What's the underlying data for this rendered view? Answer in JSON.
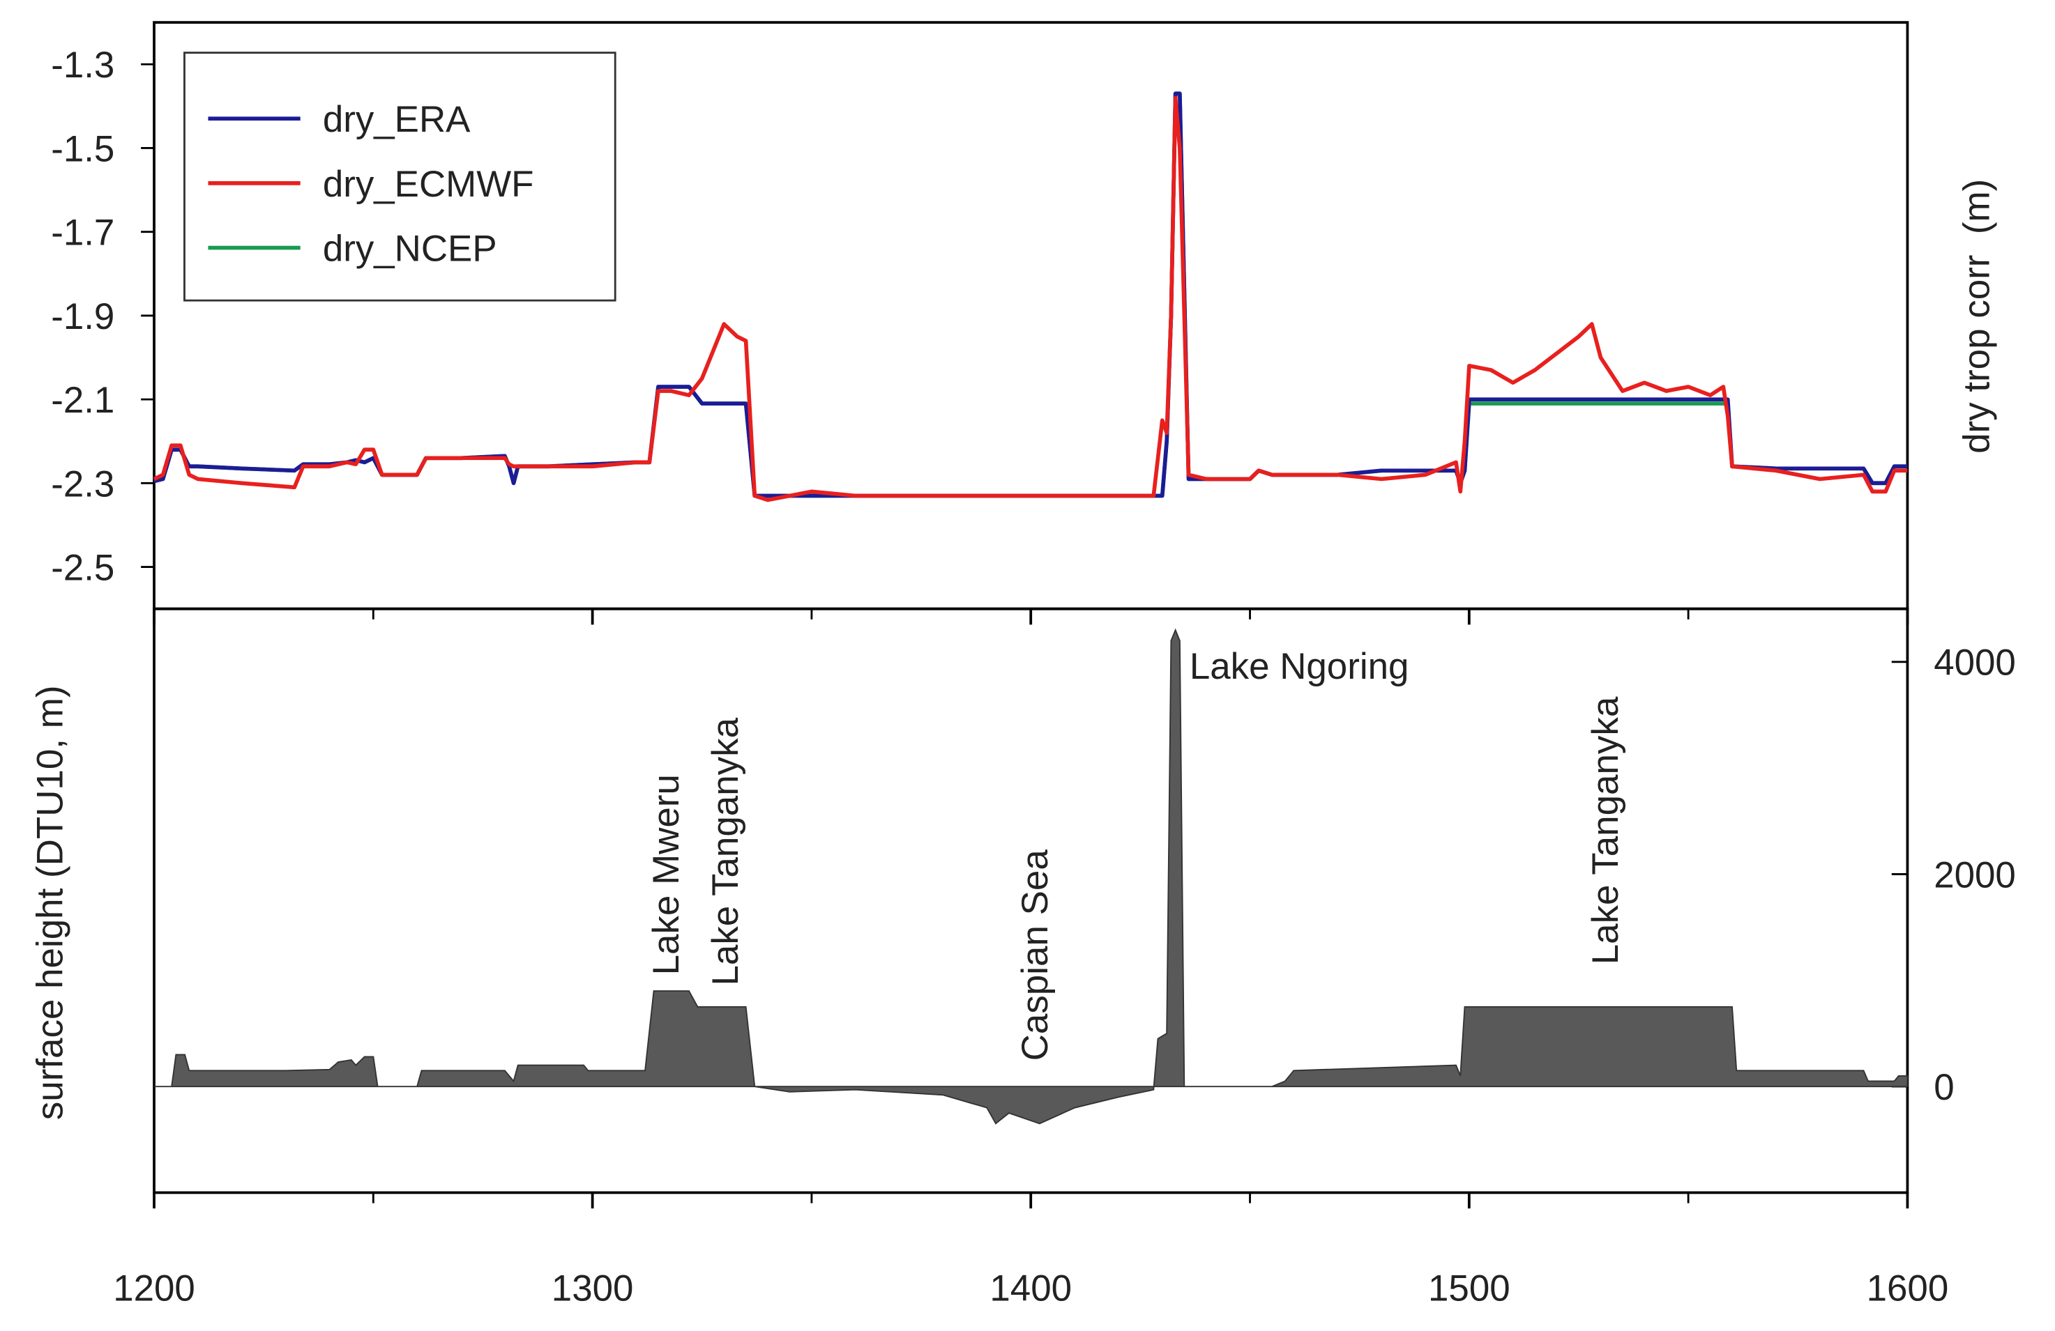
{
  "chart_data": [
    {
      "type": "line",
      "ylabel": "dry trop corr  (m)",
      "xlim": [
        1200,
        1600
      ],
      "xticks": [
        1200,
        1300,
        1400,
        1500,
        1600
      ],
      "ylim": [
        -2.6,
        -1.2
      ],
      "yticks": [
        -1.3,
        -1.5,
        -1.7,
        -1.9,
        -2.1,
        -2.3,
        -2.5
      ],
      "legend": "upper left",
      "x": [
        1200,
        1202,
        1204,
        1206,
        1208,
        1210,
        1220,
        1232,
        1234,
        1240,
        1244,
        1246,
        1248,
        1250,
        1252,
        1260,
        1262,
        1270,
        1280,
        1281,
        1282,
        1283,
        1290,
        1300,
        1310,
        1313,
        1315,
        1318,
        1322,
        1325,
        1330,
        1333,
        1335,
        1337,
        1340,
        1345,
        1350,
        1360,
        1380,
        1400,
        1420,
        1428,
        1430,
        1431,
        1432,
        1433,
        1434,
        1436,
        1440,
        1450,
        1452,
        1455,
        1460,
        1470,
        1480,
        1490,
        1497,
        1498,
        1499,
        1500,
        1505,
        1510,
        1515,
        1520,
        1525,
        1528,
        1530,
        1535,
        1540,
        1545,
        1550,
        1555,
        1558,
        1559,
        1560,
        1570,
        1580,
        1590,
        1592,
        1595,
        1597,
        1600
      ],
      "series": [
        {
          "name": "dry_ERA",
          "color": "#1c1c96",
          "values": [
            -2.295,
            -2.29,
            -2.22,
            -2.22,
            -2.26,
            -2.26,
            -2.265,
            -2.27,
            -2.255,
            -2.255,
            -2.25,
            -2.245,
            -2.25,
            -2.24,
            -2.28,
            -2.28,
            -2.24,
            -2.24,
            -2.235,
            -2.26,
            -2.3,
            -2.26,
            -2.26,
            -2.255,
            -2.25,
            -2.25,
            -2.07,
            -2.07,
            -2.07,
            -2.11,
            -2.11,
            -2.11,
            -2.11,
            -2.33,
            -2.33,
            -2.33,
            -2.33,
            -2.33,
            -2.33,
            -2.33,
            -2.33,
            -2.33,
            -2.33,
            -2.2,
            -1.9,
            -1.37,
            -1.37,
            -2.29,
            -2.29,
            -2.29,
            -2.27,
            -2.28,
            -2.28,
            -2.28,
            -2.27,
            -2.27,
            -2.27,
            -2.3,
            -2.27,
            -2.1,
            -2.1,
            -2.1,
            -2.1,
            -2.1,
            -2.1,
            -2.1,
            -2.1,
            -2.1,
            -2.1,
            -2.1,
            -2.1,
            -2.1,
            -2.1,
            -2.1,
            -2.26,
            -2.265,
            -2.265,
            -2.265,
            -2.3,
            -2.3,
            -2.26,
            -2.26
          ]
        },
        {
          "name": "dry_ECMWF",
          "color": "#e8201e",
          "values": [
            -2.29,
            -2.28,
            -2.21,
            -2.21,
            -2.28,
            -2.29,
            -2.3,
            -2.31,
            -2.26,
            -2.26,
            -2.25,
            -2.255,
            -2.22,
            -2.22,
            -2.28,
            -2.28,
            -2.24,
            -2.24,
            -2.24,
            -2.255,
            -2.26,
            -2.26,
            -2.26,
            -2.26,
            -2.25,
            -2.25,
            -2.08,
            -2.08,
            -2.09,
            -2.05,
            -1.92,
            -1.95,
            -1.96,
            -2.33,
            -2.34,
            -2.33,
            -2.32,
            -2.33,
            -2.33,
            -2.33,
            -2.33,
            -2.33,
            -2.15,
            -2.18,
            -1.9,
            -1.38,
            -1.5,
            -2.28,
            -2.29,
            -2.29,
            -2.27,
            -2.28,
            -2.28,
            -2.28,
            -2.29,
            -2.28,
            -2.25,
            -2.32,
            -2.2,
            -2.02,
            -2.03,
            -2.06,
            -2.03,
            -1.99,
            -1.95,
            -1.92,
            -2.0,
            -2.08,
            -2.06,
            -2.08,
            -2.07,
            -2.09,
            -2.07,
            -2.14,
            -2.26,
            -2.27,
            -2.29,
            -2.28,
            -2.32,
            -2.32,
            -2.27,
            -2.27
          ]
        },
        {
          "name": "dry_NCEP",
          "color": "#1a9a50",
          "values": [
            -2.295,
            -2.29,
            -2.22,
            -2.22,
            -2.26,
            -2.26,
            -2.265,
            -2.27,
            -2.255,
            -2.255,
            -2.25,
            -2.245,
            -2.25,
            -2.24,
            -2.28,
            -2.28,
            -2.24,
            -2.24,
            -2.235,
            -2.26,
            -2.3,
            -2.26,
            -2.26,
            -2.255,
            -2.25,
            -2.25,
            -2.07,
            -2.07,
            -2.07,
            -2.11,
            -2.11,
            -2.11,
            -2.11,
            -2.33,
            -2.33,
            -2.33,
            -2.33,
            -2.33,
            -2.33,
            -2.33,
            -2.33,
            -2.33,
            -2.33,
            -2.2,
            -1.9,
            -1.37,
            -1.37,
            -2.29,
            -2.29,
            -2.29,
            -2.27,
            -2.28,
            -2.28,
            -2.28,
            -2.27,
            -2.27,
            -2.27,
            -2.3,
            -2.27,
            -2.11,
            -2.11,
            -2.11,
            -2.11,
            -2.11,
            -2.11,
            -2.11,
            -2.11,
            -2.11,
            -2.11,
            -2.11,
            -2.11,
            -2.11,
            -2.11,
            -2.11,
            -2.26,
            -2.265,
            -2.265,
            -2.265,
            -2.3,
            -2.3,
            -2.26,
            -2.26
          ]
        }
      ]
    },
    {
      "type": "area",
      "ylabel": "surface height (DTU10, m)",
      "xlim": [
        1200,
        1600
      ],
      "xticks": [
        1200,
        1300,
        1400,
        1500,
        1600
      ],
      "ylim": [
        -1000,
        4500
      ],
      "yticks": [
        0,
        2000,
        4000
      ],
      "color": "#595959",
      "x": [
        1200,
        1204,
        1205,
        1207,
        1208,
        1230,
        1240,
        1242,
        1245,
        1246,
        1248,
        1250,
        1251,
        1260,
        1261,
        1280,
        1282,
        1283,
        1298,
        1299,
        1312,
        1314,
        1322,
        1324,
        1335,
        1337,
        1345,
        1360,
        1380,
        1390,
        1392,
        1395,
        1402,
        1410,
        1420,
        1428,
        1429,
        1431,
        1432,
        1433,
        1434,
        1435,
        1455,
        1458,
        1460,
        1497,
        1498,
        1499,
        1560,
        1561,
        1590,
        1591,
        1597,
        1598,
        1600
      ],
      "values": [
        0,
        0,
        300,
        300,
        150,
        150,
        160,
        230,
        250,
        200,
        280,
        280,
        0,
        0,
        150,
        150,
        50,
        200,
        200,
        150,
        150,
        900,
        900,
        750,
        750,
        0,
        -50,
        -30,
        -80,
        -200,
        -350,
        -250,
        -350,
        -200,
        -100,
        -30,
        450,
        500,
        4200,
        4300,
        4200,
        0,
        0,
        50,
        150,
        200,
        100,
        750,
        750,
        150,
        150,
        50,
        50,
        100,
        100
      ],
      "annotations": [
        "Lake Mweru",
        "Lake Tanganyka",
        "Caspian Sea",
        "Lake Ngoring",
        "Lake Tanganyka"
      ]
    }
  ]
}
